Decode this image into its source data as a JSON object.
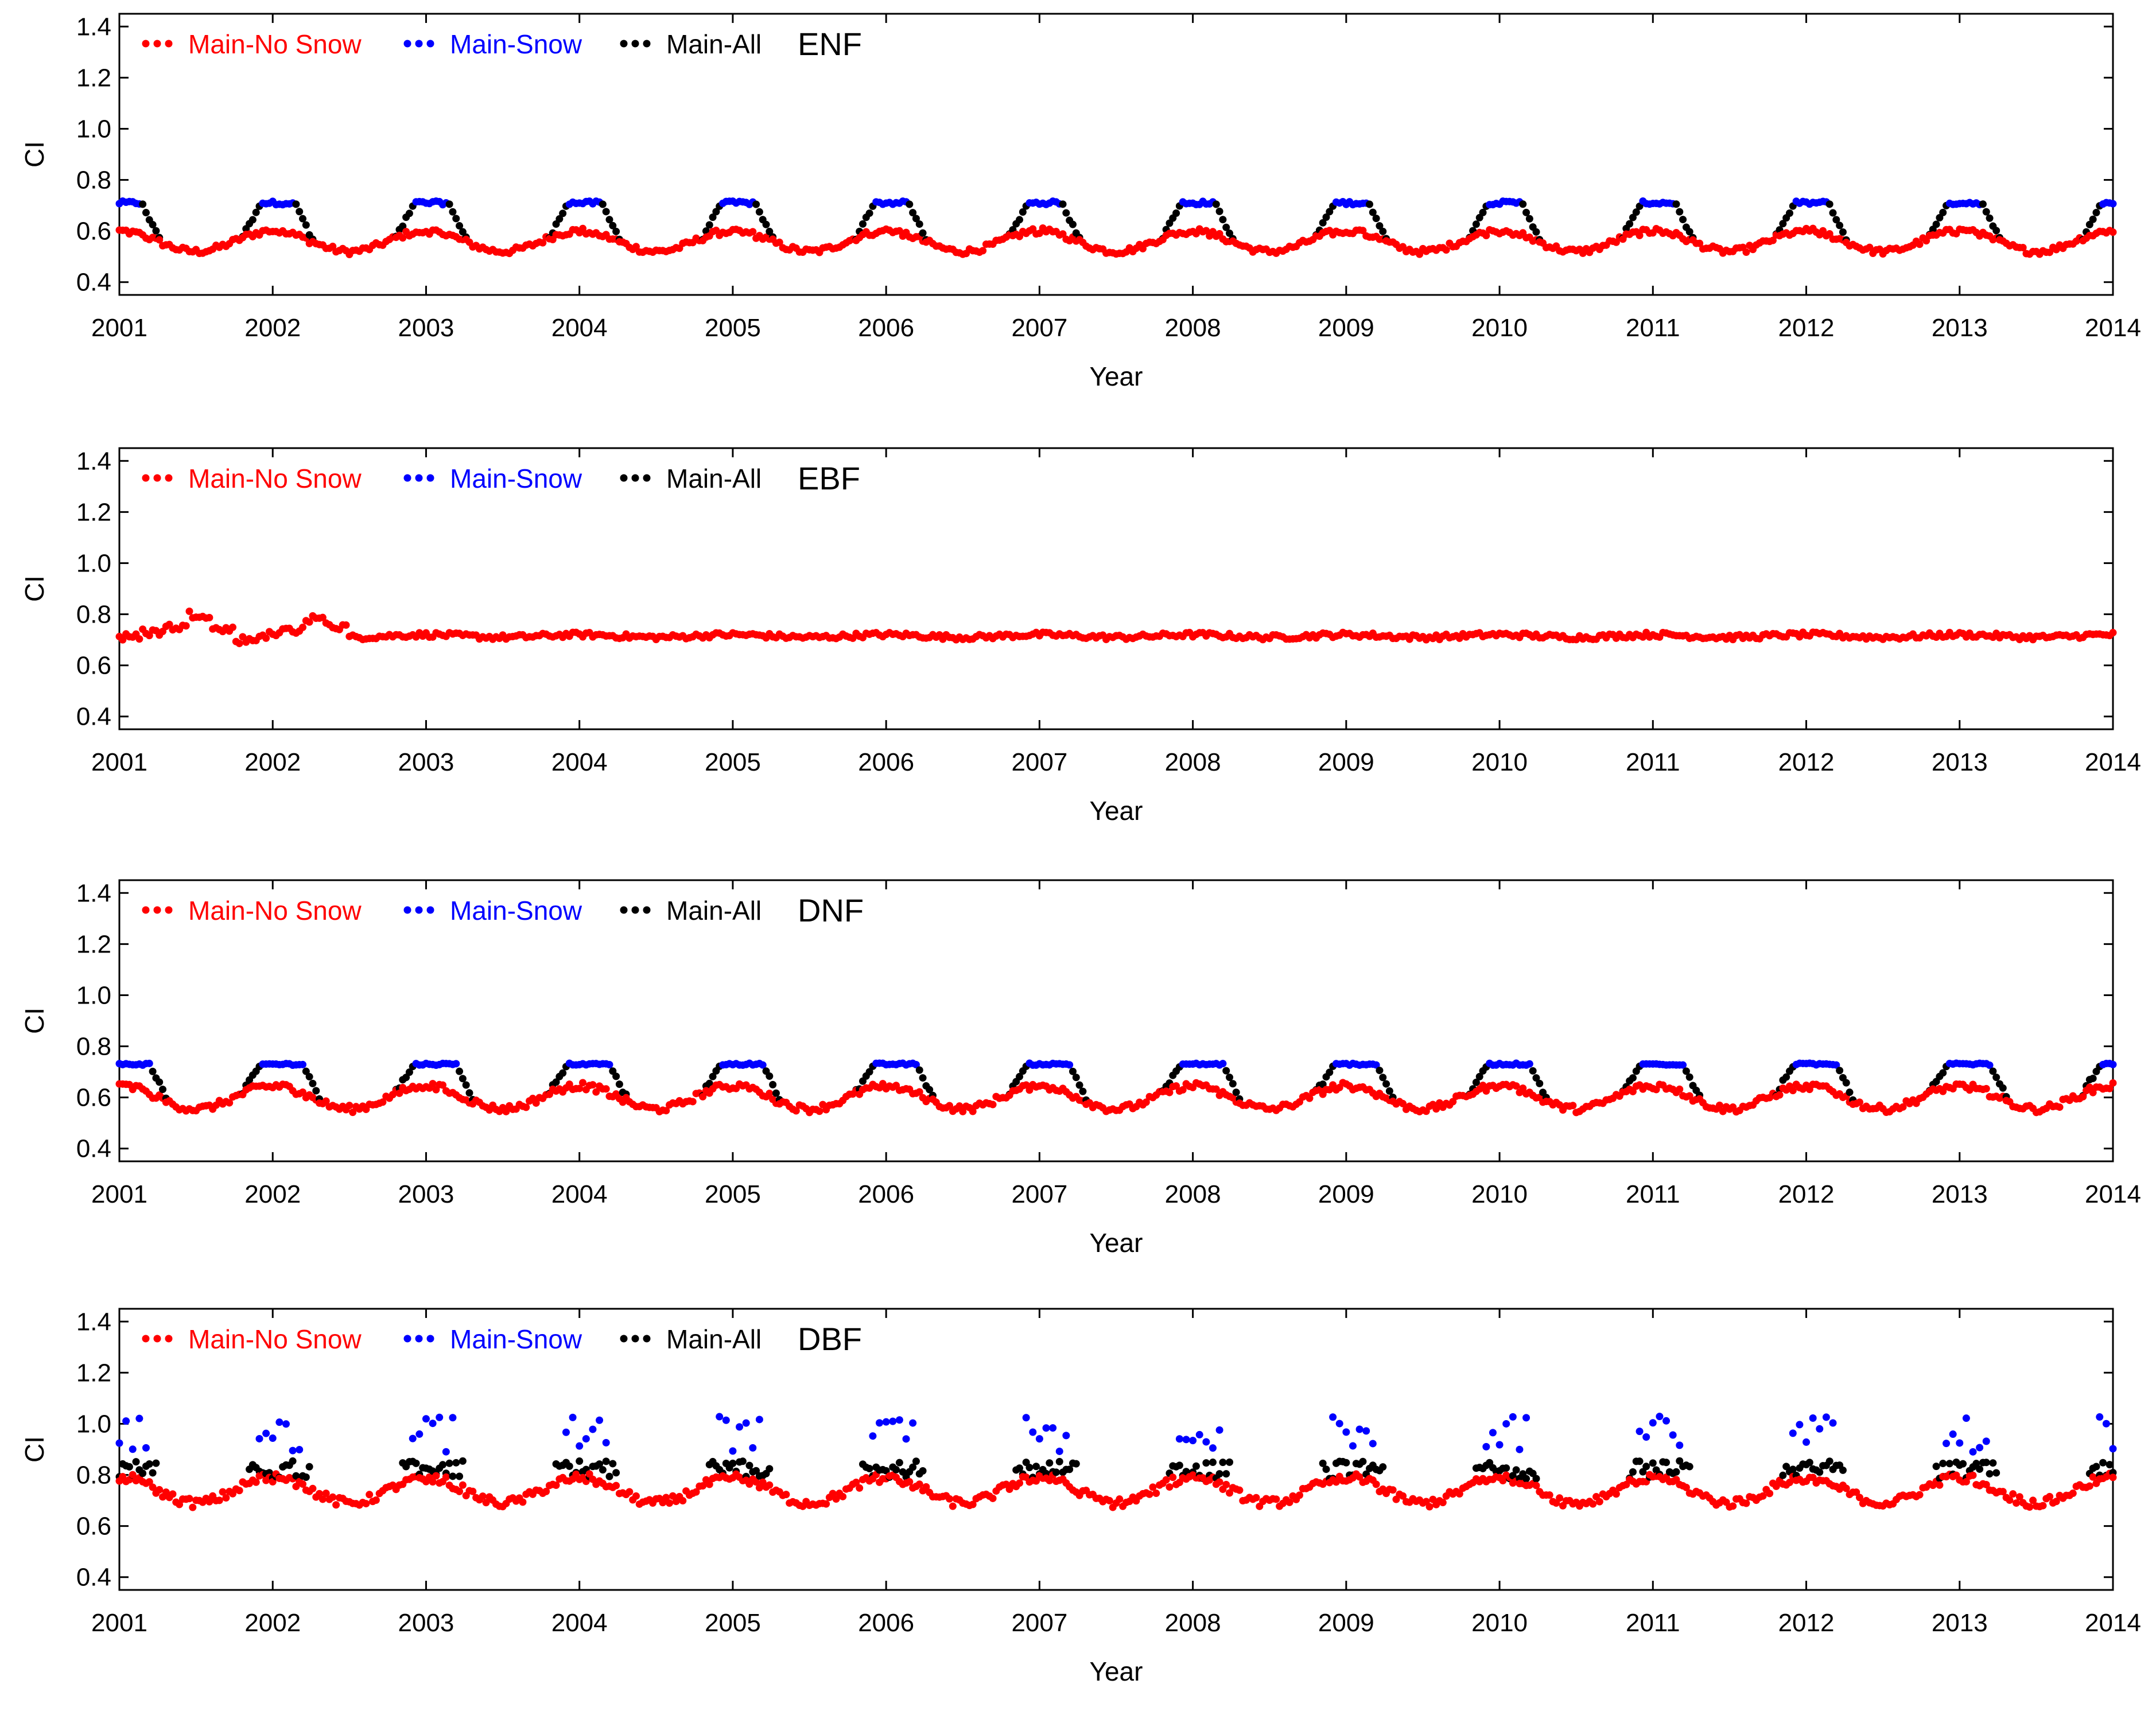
{
  "colors": {
    "no_snow": "#ff0000",
    "snow": "#0000ff",
    "all": "#000000"
  },
  "chart_data": [
    {
      "type": "scatter",
      "title": "ENF",
      "xlabel": "Year",
      "ylabel": "CI",
      "xlim": [
        2001,
        2014
      ],
      "ylim": [
        0.35,
        1.45
      ],
      "yticks": [
        0.4,
        0.6,
        0.8,
        1.0,
        1.2,
        1.4
      ],
      "ytick_labels": [
        "0.4",
        "0.6",
        "0.8",
        "1.0",
        "1.2",
        "1.4"
      ],
      "xticks": [
        2001,
        2002,
        2003,
        2004,
        2005,
        2006,
        2007,
        2008,
        2009,
        2010,
        2011,
        2012,
        2013,
        2014
      ],
      "xtick_labels": [
        "2001",
        "2002",
        "2003",
        "2004",
        "2005",
        "2006",
        "2007",
        "2008",
        "2009",
        "2010",
        "2011",
        "2012",
        "2013",
        "2014"
      ],
      "legend": [
        "Main-No Snow",
        "Main-Snow",
        "Main-All"
      ],
      "series_params": {
        "no_snow": {
          "base": 0.56,
          "amp": 0.04,
          "peak_phase": 0.0,
          "noise": 0.012
        },
        "snow": {
          "value": 0.71,
          "season_start": 0.92,
          "season_end": 0.15,
          "noise": 0.007
        },
        "all": {
          "shoulder_width": 0.12
        }
      }
    },
    {
      "type": "scatter",
      "title": "EBF",
      "xlabel": "Year",
      "ylabel": "CI",
      "xlim": [
        2001,
        2014
      ],
      "ylim": [
        0.35,
        1.45
      ],
      "yticks": [
        0.4,
        0.6,
        0.8,
        1.0,
        1.2,
        1.4
      ],
      "ytick_labels": [
        "0.4",
        "0.6",
        "0.8",
        "1.0",
        "1.2",
        "1.4"
      ],
      "xticks": [
        2001,
        2002,
        2003,
        2004,
        2005,
        2006,
        2007,
        2008,
        2009,
        2010,
        2011,
        2012,
        2013,
        2014
      ],
      "xtick_labels": [
        "2001",
        "2002",
        "2003",
        "2004",
        "2005",
        "2006",
        "2007",
        "2008",
        "2009",
        "2010",
        "2011",
        "2012",
        "2013",
        "2014"
      ],
      "legend": [
        "Main-No Snow",
        "Main-Snow",
        "Main-All"
      ],
      "series_params": {
        "no_snow": {
          "base": 0.715,
          "amp": 0.005,
          "peak_phase": 0.0,
          "noise": 0.01,
          "early_values": [
            0.71,
            0.73,
            0.75,
            0.8,
            0.74,
            0.7,
            0.72,
            0.74,
            0.78,
            0.75
          ]
        }
      }
    },
    {
      "type": "scatter",
      "title": "DNF",
      "xlabel": "Year",
      "ylabel": "CI",
      "xlim": [
        2001,
        2014
      ],
      "ylim": [
        0.35,
        1.45
      ],
      "yticks": [
        0.4,
        0.6,
        0.8,
        1.0,
        1.2,
        1.4
      ],
      "ytick_labels": [
        "0.4",
        "0.6",
        "0.8",
        "1.0",
        "1.2",
        "1.4"
      ],
      "xticks": [
        2001,
        2002,
        2003,
        2004,
        2005,
        2006,
        2007,
        2008,
        2009,
        2010,
        2011,
        2012,
        2013,
        2014
      ],
      "xtick_labels": [
        "2001",
        "2002",
        "2003",
        "2004",
        "2005",
        "2006",
        "2007",
        "2008",
        "2009",
        "2010",
        "2011",
        "2012",
        "2013",
        "2014"
      ],
      "legend": [
        "Main-No Snow",
        "Main-Snow",
        "Main-All"
      ],
      "series_params": {
        "no_snow": {
          "base": 0.6,
          "amp": 0.045,
          "peak_phase": 0.0,
          "noise": 0.014
        },
        "snow": {
          "value": 0.73,
          "season_start": 0.92,
          "season_end": 0.2,
          "noise": 0.004
        },
        "all": {
          "shoulder_width": 0.12
        }
      }
    },
    {
      "type": "scatter",
      "title": "DBF",
      "xlabel": "Year",
      "ylabel": "CI",
      "xlim": [
        2001,
        2014
      ],
      "ylim": [
        0.35,
        1.45
      ],
      "yticks": [
        0.4,
        0.6,
        0.8,
        1.0,
        1.2,
        1.4
      ],
      "ytick_labels": [
        "0.4",
        "0.6",
        "0.8",
        "1.0",
        "1.2",
        "1.4"
      ],
      "xticks": [
        2001,
        2002,
        2003,
        2004,
        2005,
        2006,
        2007,
        2008,
        2009,
        2010,
        2011,
        2012,
        2013,
        2014
      ],
      "xtick_labels": [
        "2001",
        "2002",
        "2003",
        "2004",
        "2005",
        "2006",
        "2007",
        "2008",
        "2009",
        "2010",
        "2011",
        "2012",
        "2013",
        "2014"
      ],
      "legend": [
        "Main-No Snow",
        "Main-Snow",
        "Main-All"
      ],
      "series_params": {
        "no_snow": {
          "base": 0.74,
          "amp": 0.05,
          "peak_phase": 0.0,
          "noise": 0.018
        },
        "snow": {
          "value": 0.96,
          "season_start": 0.9,
          "season_end": 0.18,
          "noise": 0.07,
          "scattered": true
        },
        "all": {
          "value": 0.82,
          "scattered": true,
          "noise": 0.035
        }
      }
    }
  ]
}
